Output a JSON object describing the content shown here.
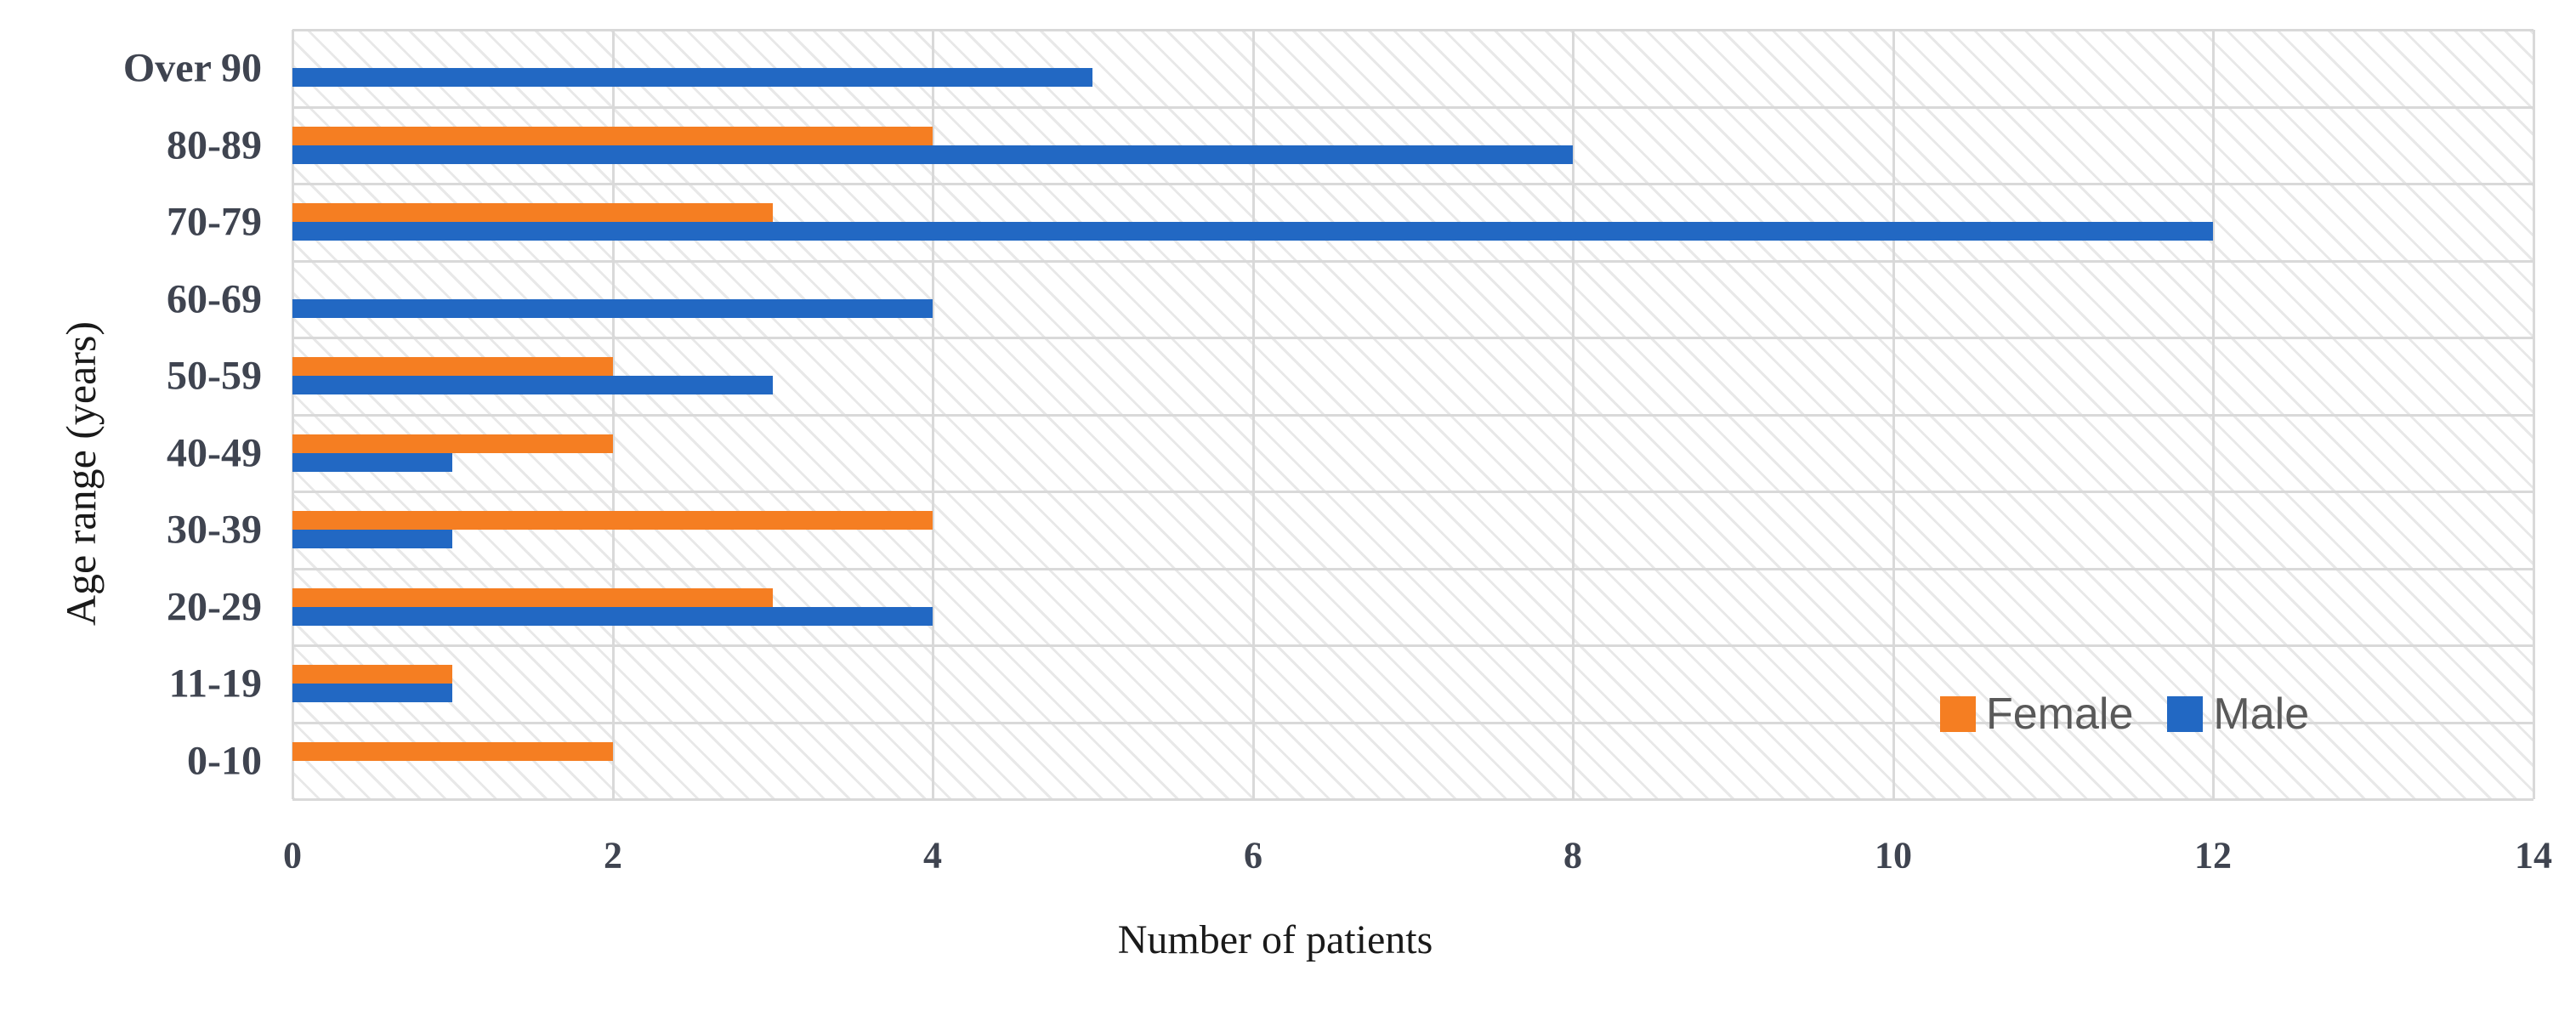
{
  "chart_data": {
    "type": "bar",
    "orientation": "horizontal",
    "title": "",
    "xlabel": "Number of patients",
    "ylabel": "Age range (years)",
    "categories": [
      "Over 90",
      "80-89",
      "70-79",
      "60-69",
      "50-59",
      "40-49",
      "30-39",
      "20-29",
      "11-19",
      "0-10"
    ],
    "series": [
      {
        "name": "Female",
        "color": "#F57E22",
        "values": [
          0,
          4,
          3,
          0,
          2,
          2,
          4,
          3,
          1,
          2
        ]
      },
      {
        "name": "Male",
        "color": "#2268C3",
        "values": [
          5,
          8,
          12,
          4,
          3,
          1,
          1,
          4,
          1,
          0
        ]
      }
    ],
    "xlim": [
      0,
      14
    ],
    "xticks": [
      "0",
      "2",
      "4",
      "6",
      "8",
      "10",
      "12",
      "14"
    ],
    "grid": "both",
    "legend_position": "inside-right",
    "plot_background": "light-diagonal-hatch",
    "colors": {
      "gridline": "#d9d9d9",
      "tick_label": "#3f4450",
      "category_label": "#3f4450",
      "axis_title": "#1a1a1a",
      "legend_text": "#595959"
    }
  }
}
